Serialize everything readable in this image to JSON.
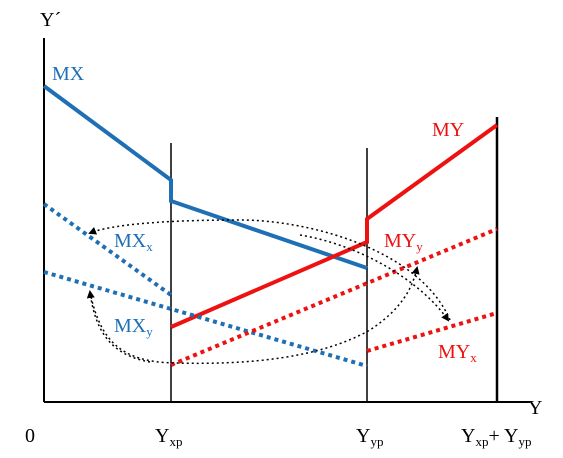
{
  "colors": {
    "blue": "#1f6fb5",
    "red": "#ee1111",
    "axis": "#000000"
  },
  "axes": {
    "y_label": "Y´",
    "x_label": "Y",
    "origin": "0",
    "ticks": [
      {
        "main": "Y",
        "sub": "xp"
      },
      {
        "main": "Y",
        "sub": "yp"
      },
      {
        "main": "Y",
        "sub": "xp",
        "extra": "+ Y",
        "extra_sub": "yp"
      }
    ]
  },
  "labels": {
    "mx": "MX",
    "my": "MY",
    "mx_x": {
      "main": "MX",
      "sub": "x"
    },
    "mx_y": {
      "main": "MX",
      "sub": "y"
    },
    "my_y": {
      "main": "MY",
      "sub": "y"
    },
    "my_x": {
      "main": "MY",
      "sub": "x"
    }
  }
}
